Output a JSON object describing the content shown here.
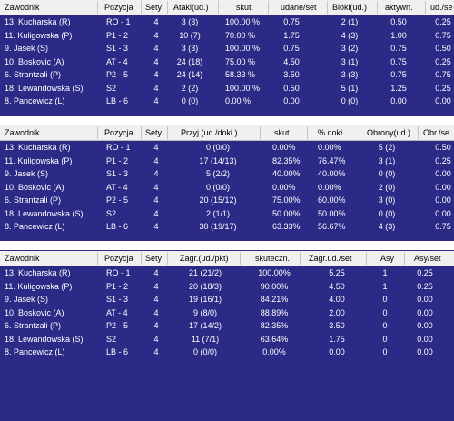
{
  "table_attack": {
    "headers": [
      "Zawodnik",
      "Pozycja",
      "Sety",
      "Ataki(ud.)",
      "skut.",
      "udane/set",
      "Bloki(ud.)",
      "aktywn.",
      "ud./se"
    ],
    "rows": [
      [
        "13. Kucharska (R)",
        "RO - 1",
        "4",
        "3 (3)",
        "100.00 %",
        "0.75",
        "2 (1)",
        "0.50",
        "0.25"
      ],
      [
        "11. Kuligowska (P)",
        "P1 - 2",
        "4",
        "10 (7)",
        "70.00 %",
        "1.75",
        "4 (3)",
        "1.00",
        "0.75"
      ],
      [
        "9. Jasek (S)",
        "S1 - 3",
        "4",
        "3 (3)",
        "100.00 %",
        "0.75",
        "3 (2)",
        "0.75",
        "0.50"
      ],
      [
        "10. Boskovic (A)",
        "AT - 4",
        "4",
        "24 (18)",
        "75.00 %",
        "4.50",
        "3 (1)",
        "0.75",
        "0.25"
      ],
      [
        "6. Strantzali (P)",
        "P2 - 5",
        "4",
        "24 (14)",
        "58.33 %",
        "3.50",
        "3 (3)",
        "0.75",
        "0.75"
      ],
      [
        "18. Lewandowska (S)",
        "S2",
        "4",
        "2 (2)",
        "100.00 %",
        "0.50",
        "5 (1)",
        "1.25",
        "0.25"
      ],
      [
        "8. Pancewicz (L)",
        "LB - 6",
        "4",
        "0 (0)",
        "0.00 %",
        "0.00",
        "0 (0)",
        "0.00",
        "0.00"
      ]
    ]
  },
  "table_reception": {
    "headers": [
      "Zawodnik",
      "Pozycja",
      "Sety",
      "Przyj.(ud./dokł.)",
      "skut.",
      "% dokł.",
      "Obrony(ud.)",
      "Obr./se"
    ],
    "rows": [
      [
        "13. Kucharska (R)",
        "RO - 1",
        "4",
        "0 (0/0)",
        "0.00%",
        "0.00%",
        "5 (2)",
        "0.50"
      ],
      [
        "11. Kuligowska (P)",
        "P1 - 2",
        "4",
        "17 (14/13)",
        "82.35%",
        "76.47%",
        "3 (1)",
        "0.25"
      ],
      [
        "9. Jasek (S)",
        "S1 - 3",
        "4",
        "5 (2/2)",
        "40.00%",
        "40.00%",
        "0 (0)",
        "0.00"
      ],
      [
        "10. Boskovic (A)",
        "AT - 4",
        "4",
        "0 (0/0)",
        "0.00%",
        "0.00%",
        "2 (0)",
        "0.00"
      ],
      [
        "6. Strantzali (P)",
        "P2 - 5",
        "4",
        "20 (15/12)",
        "75.00%",
        "60.00%",
        "3 (0)",
        "0.00"
      ],
      [
        "18. Lewandowska (S)",
        "S2",
        "4",
        "2 (1/1)",
        "50.00%",
        "50.00%",
        "0 (0)",
        "0.00"
      ],
      [
        "8. Pancewicz (L)",
        "LB - 6",
        "4",
        "30 (19/17)",
        "63.33%",
        "56.67%",
        "4 (3)",
        "0.75"
      ]
    ]
  },
  "table_serve": {
    "headers": [
      "Zawodnik",
      "Pozycja",
      "Sety",
      "Zagr.(ud./pkt)",
      "skuteczn.",
      "Zagr.ud./set",
      "Asy",
      "Asy/set"
    ],
    "rows": [
      [
        "13. Kucharska (R)",
        "RO - 1",
        "4",
        "21 (21/2)",
        "100.00%",
        "5.25",
        "1",
        "0.25"
      ],
      [
        "11. Kuligowska (P)",
        "P1 - 2",
        "4",
        "20 (18/3)",
        "90.00%",
        "4.50",
        "1",
        "0.25"
      ],
      [
        "9. Jasek (S)",
        "S1 - 3",
        "4",
        "19 (16/1)",
        "84.21%",
        "4.00",
        "0",
        "0.00"
      ],
      [
        "10. Boskovic (A)",
        "AT - 4",
        "4",
        "9 (8/0)",
        "88.89%",
        "2.00",
        "0",
        "0.00"
      ],
      [
        "6. Strantzali (P)",
        "P2 - 5",
        "4",
        "17 (14/2)",
        "82.35%",
        "3.50",
        "0",
        "0.00"
      ],
      [
        "18. Lewandowska (S)",
        "S2",
        "4",
        "11 (7/1)",
        "63.64%",
        "1.75",
        "0",
        "0.00"
      ],
      [
        "8. Pancewicz (L)",
        "LB - 6",
        "4",
        "0 (0/0)",
        "0.00%",
        "0.00",
        "0",
        "0.00"
      ]
    ]
  },
  "colors": {
    "header_bg": "#f0f0f0",
    "body_bg": "#2b2a86",
    "gap": "#ffffff"
  }
}
